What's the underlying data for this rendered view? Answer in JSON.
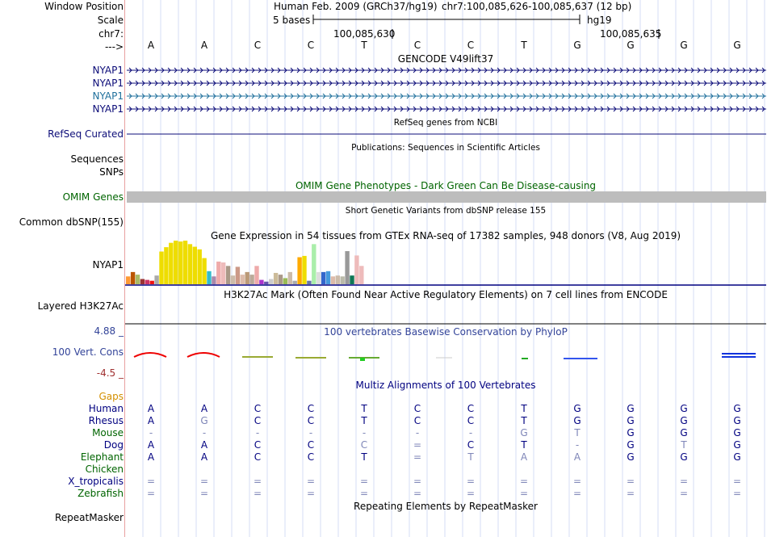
{
  "header": {
    "assembly": "Human Feb. 2009 (GRCh37/hg19)",
    "position": "chr7:100,085,626-100,085,637 (12 bp)",
    "scale_text": "5 bases",
    "scale_db": "hg19",
    "coord1": "100,085,630",
    "coord2": "100,085,635",
    "reference_bases": [
      "A",
      "A",
      "C",
      "C",
      "T",
      "C",
      "C",
      "T",
      "G",
      "G",
      "G",
      "G"
    ]
  },
  "labels": {
    "window_position": "Window Position",
    "scale": "Scale",
    "chrom": "chr7:",
    "strand": "--->",
    "nyap1_a": "NYAP1",
    "nyap1_b": "NYAP1",
    "nyap1_c": "NYAP1",
    "nyap1_d": "NYAP1",
    "refseq": "RefSeq Curated",
    "sequences": "Sequences",
    "snps": "SNPs",
    "omim": "OMIM Genes",
    "dbsnp": "Common dbSNP(155)",
    "gtex_gene": "NYAP1",
    "h3k27ac": "Layered H3K27Ac",
    "cons_max": "4.88 _",
    "cons_name": "100 Vert. Cons",
    "cons_min": "-4.5 _",
    "gaps": "Gaps",
    "repeatmasker": "RepeatMasker"
  },
  "tracks": {
    "gencode": "GENCODE V49lift37",
    "refseq_title": "RefSeq genes from NCBI",
    "publications": "Publications: Sequences in Scientific Articles",
    "omim_title": "OMIM Gene Phenotypes - Dark Green Can Be Disease-causing",
    "dbsnp_title": "Short Genetic Variants from dbSNP release 155",
    "gtex_title": "Gene Expression in 54 tissues from GTEx RNA-seq of 17382 samples, 948 donors (V8, Aug 2019)",
    "h3k27ac_title": "H3K27Ac Mark (Often Found Near Active Regulatory Elements) on 7 cell lines from ENCODE",
    "cons_title": "100 vertebrates Basewise Conservation by PhyloP",
    "multiz_title": "Multiz Alignments of 100 Vertebrates",
    "repeat_title": "Repeating Elements by RepeatMasker"
  },
  "alignment": {
    "species": [
      {
        "name": "Human",
        "color": "#000080",
        "bases": [
          "A",
          "A",
          "C",
          "C",
          "T",
          "C",
          "C",
          "T",
          "G",
          "G",
          "G",
          "G"
        ]
      },
      {
        "name": "Rhesus",
        "color": "#000080",
        "bases": [
          "A",
          "G",
          "C",
          "C",
          "T",
          "C",
          "C",
          "T",
          "G",
          "G",
          "G",
          "G"
        ]
      },
      {
        "name": "Mouse",
        "color": "#006400",
        "bases": [
          "-",
          "-",
          "-",
          "-",
          "-",
          "-",
          "-",
          "G",
          "T",
          "G",
          "G",
          "G"
        ]
      },
      {
        "name": "Dog",
        "color": "#000080",
        "bases": [
          "A",
          "A",
          "C",
          "C",
          "C",
          "=",
          "C",
          "T",
          "-",
          "G",
          "T",
          "G"
        ]
      },
      {
        "name": "Elephant",
        "color": "#006400",
        "bases": [
          "A",
          "A",
          "C",
          "C",
          "T",
          "=",
          "T",
          "A",
          "A",
          "G",
          "G",
          "G"
        ]
      },
      {
        "name": "Chicken",
        "color": "#006400",
        "bases": [
          "",
          "",
          "",
          "",
          "",
          "",
          "",
          "",
          "",
          "",
          "",
          ""
        ]
      },
      {
        "name": "X_tropicalis",
        "color": "#000080",
        "bases": [
          "=",
          "=",
          "=",
          "=",
          "=",
          "=",
          "=",
          "=",
          "=",
          "=",
          "=",
          "="
        ]
      },
      {
        "name": "Zebrafish",
        "color": "#006400",
        "bases": [
          "=",
          "=",
          "=",
          "=",
          "=",
          "=",
          "=",
          "=",
          "=",
          "=",
          "=",
          "="
        ]
      }
    ]
  },
  "chart_data": {
    "type": "bar",
    "title": "Gene Expression in 54 tissues from GTEx RNA-seq of 17382 samples, 948 donors (V8, Aug 2019)",
    "gene": "NYAP1",
    "values": [
      0.18,
      0.28,
      0.22,
      0.12,
      0.1,
      0.08,
      0.2,
      0.75,
      0.85,
      0.95,
      1.0,
      0.98,
      1.0,
      0.92,
      0.86,
      0.8,
      0.6,
      0.3,
      0.18,
      0.52,
      0.5,
      0.42,
      0.2,
      0.4,
      0.22,
      0.28,
      0.22,
      0.42,
      0.1,
      0.06,
      0.12,
      0.26,
      0.22,
      0.14,
      0.28,
      0.08,
      0.62,
      0.65,
      0.08,
      0.92,
      0.28,
      0.28,
      0.3,
      0.18,
      0.2,
      0.18,
      0.76,
      0.2,
      0.66,
      0.42
    ],
    "colors": [
      "#ff9933",
      "#bb5500",
      "#aabb66",
      "#993333",
      "#cc3366",
      "#ee1111",
      "#aaaaaa",
      "#eedd00",
      "#eedd00",
      "#eedd00",
      "#eedd00",
      "#eedd00",
      "#eedd00",
      "#eedd00",
      "#eedd00",
      "#eedd00",
      "#eedd00",
      "#33bbcc",
      "#aa88aa",
      "#eeaaaa",
      "#eebbbb",
      "#aa9988",
      "#ccbbaa",
      "#cc9988",
      "#ddbbaa",
      "#bb9977",
      "#bbaa99",
      "#eeaaaa",
      "#aa33cc",
      "#6655aa",
      "#cccccc",
      "#ccbb99",
      "#aa9988",
      "#99bb55",
      "#ccbbaa",
      "#aaaaaa",
      "#ffaa00",
      "#eedd00",
      "#6677aa",
      "#aaeeaa",
      "#dddddd",
      "#3366cc",
      "#4499dd",
      "#ddbbaa",
      "#ccbbaa",
      "#bbbbaa",
      "#999999",
      "#117755",
      "#eebbbb",
      "#eebbbb"
    ],
    "xlabel": "",
    "ylabel": ""
  },
  "colors": {
    "navy": "#000080",
    "teal": "#20709c",
    "olive_green": "#006400",
    "omim_gray": "#bdbdbd",
    "gaps_orange": "#d38f00",
    "cons_label": "#334499"
  }
}
